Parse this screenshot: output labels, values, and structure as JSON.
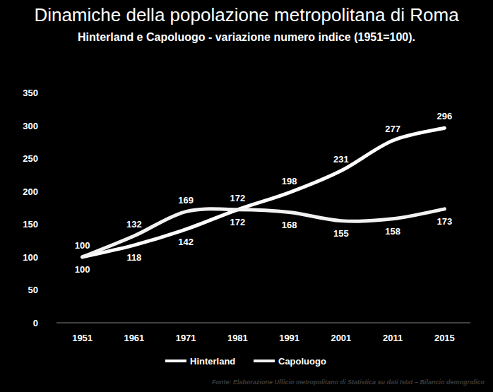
{
  "chart_data": {
    "type": "line",
    "title": "Dinamiche della popolazione metropolitana di Roma",
    "subtitle": "Hinterland e Capoluogo - variazione numero indice (1951=100).",
    "source": "Fonte: Elaborazione Ufficio metropolitano di Statistica su dati Istat – Bilancio demografico",
    "categories": [
      "1951",
      "1961",
      "1971",
      "1981",
      "1991",
      "2001",
      "2011",
      "2015"
    ],
    "series": [
      {
        "name": "Hinterland",
        "color": "#ffffff",
        "values": [
          100,
          118,
          142,
          172,
          198,
          231,
          277,
          296
        ]
      },
      {
        "name": "Capoluogo",
        "color": "#f2f2f2",
        "values": [
          100,
          132,
          169,
          172,
          168,
          155,
          158,
          173
        ]
      }
    ],
    "ylim": [
      0,
      350
    ],
    "yticks": [
      0,
      50,
      100,
      150,
      200,
      250,
      300,
      350
    ],
    "grid": false,
    "legend": "bottom",
    "data_labels": true,
    "line_style": "smooth"
  }
}
